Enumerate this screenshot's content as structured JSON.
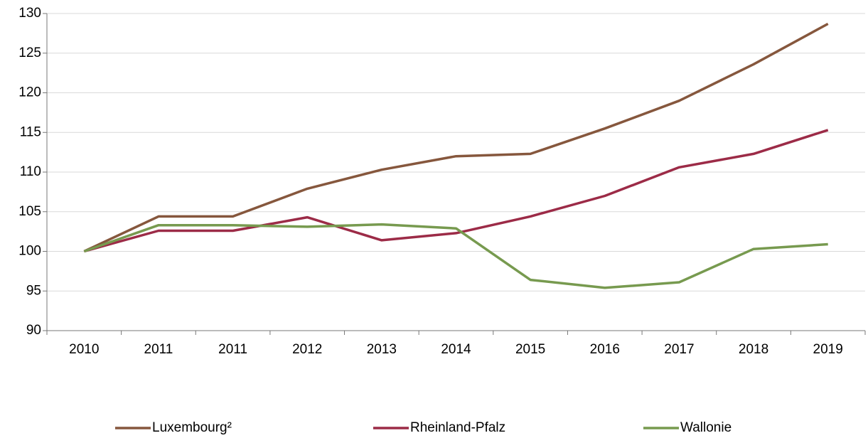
{
  "chart_data": {
    "type": "line",
    "categories": [
      "2010",
      "2011",
      "2011",
      "2012",
      "2013",
      "2014",
      "2015",
      "2016",
      "2017",
      "2018",
      "2019"
    ],
    "series": [
      {
        "name": "Luxembourg²",
        "color": "#86573d",
        "values": [
          100,
          104.4,
          104.4,
          107.9,
          110.3,
          112.0,
          112.3,
          115.5,
          119.0,
          123.6,
          128.7
        ]
      },
      {
        "name": "Rheinland-Pfalz",
        "color": "#9c2b47",
        "values": [
          100,
          102.6,
          102.6,
          104.3,
          101.4,
          102.3,
          104.4,
          107.0,
          110.6,
          112.3,
          115.3
        ]
      },
      {
        "name": "Wallonie",
        "color": "#779a4f",
        "values": [
          100,
          103.3,
          103.3,
          103.1,
          103.4,
          102.9,
          96.4,
          95.4,
          96.1,
          100.3,
          100.9
        ]
      }
    ],
    "ylim": [
      90,
      130
    ],
    "yticks": [
      90,
      95,
      100,
      105,
      110,
      115,
      120,
      125,
      130
    ],
    "grid": true,
    "legend": "bottom"
  }
}
